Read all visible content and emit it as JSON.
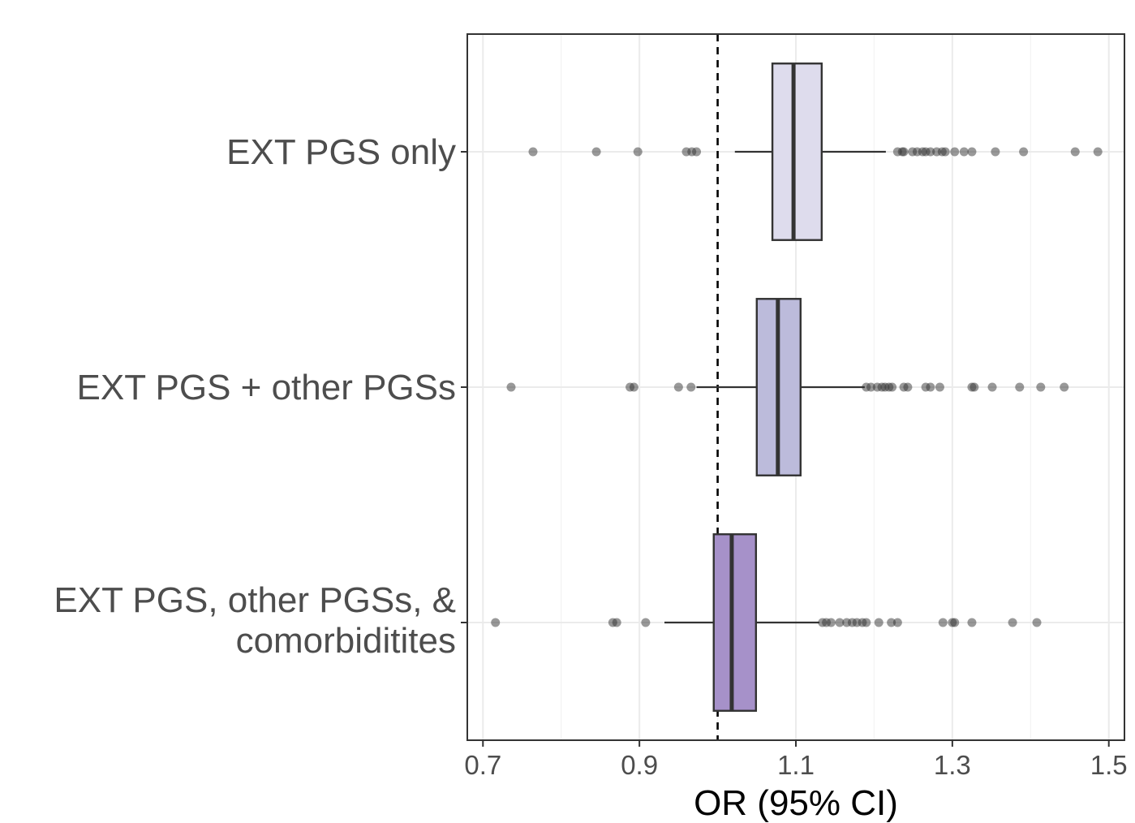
{
  "chart_data": {
    "type": "boxplot",
    "xlabel": "OR (95% CI)",
    "xlim": [
      0.68,
      1.52
    ],
    "xticks": [
      0.7,
      0.9,
      1.1,
      1.3,
      1.5
    ],
    "xtick_labels": [
      "0.7",
      "0.9",
      "1.1",
      "1.3",
      "1.5"
    ],
    "reference_line": 1.0,
    "grid": true,
    "categories": [
      {
        "label_lines": [
          "EXT PGS only"
        ],
        "fill": "#dedced",
        "box": {
          "q1": 1.07,
          "median": 1.097,
          "q3": 1.133,
          "whisker_low": 1.022,
          "whisker_high": 1.215
        },
        "outliers": [
          0.764,
          0.845,
          0.898,
          0.96,
          0.967,
          0.973,
          1.23,
          1.236,
          1.238,
          1.249,
          1.255,
          1.262,
          1.266,
          1.272,
          1.28,
          1.287,
          1.291,
          1.303,
          1.315,
          1.325,
          1.355,
          1.391,
          1.457,
          1.486
        ]
      },
      {
        "label_lines": [
          "EXT PGS + other PGSs"
        ],
        "fill": "#bcbbdb",
        "box": {
          "q1": 1.05,
          "median": 1.077,
          "q3": 1.106,
          "whisker_low": 0.973,
          "whisker_high": 1.188
        },
        "outliers": [
          0.736,
          0.888,
          0.893,
          0.95,
          0.966,
          1.19,
          1.196,
          1.204,
          1.21,
          1.214,
          1.219,
          1.223,
          1.238,
          1.243,
          1.266,
          1.272,
          1.284,
          1.325,
          1.328,
          1.351,
          1.386,
          1.413,
          1.443
        ]
      },
      {
        "label_lines": [
          "EXT PGS, other PGSs, &",
          "comorbiditites"
        ],
        "fill": "#a691c9",
        "box": {
          "q1": 0.995,
          "median": 1.018,
          "q3": 1.049,
          "whisker_low": 0.932,
          "whisker_high": 1.13
        },
        "outliers": [
          0.716,
          0.866,
          0.871,
          0.908,
          1.134,
          1.139,
          1.145,
          1.156,
          1.165,
          1.172,
          1.178,
          1.185,
          1.19,
          1.206,
          1.222,
          1.23,
          1.288,
          1.3,
          1.303,
          1.325,
          1.377,
          1.408
        ]
      }
    ]
  }
}
